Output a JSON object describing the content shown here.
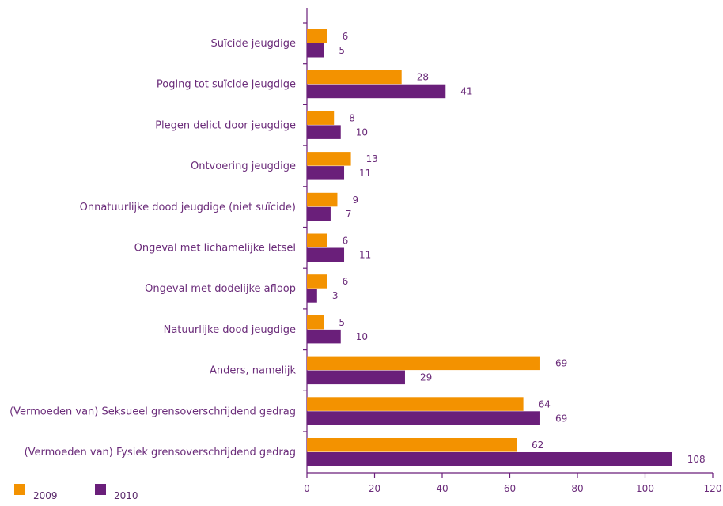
{
  "chart_data": {
    "type": "bar",
    "orientation": "horizontal",
    "categories": [
      "Suïcide jeugdige",
      "Poging tot suïcide jeugdige",
      "Plegen delict door jeugdige",
      "Ontvoering jeugdige",
      "Onnatuurlijke dood jeugdige (niet suïcide)",
      "Ongeval met lichamelijke letsel",
      "Ongeval met dodelijke afloop",
      "Natuurlijke dood jeugdige",
      "Anders, namelijk",
      "(Vermoeden van) Seksueel grensoverschrijdend gedrag",
      "(Vermoeden van) Fysiek grensoverschrijdend gedrag"
    ],
    "series": [
      {
        "name": "2009",
        "color": "#f39200",
        "values": [
          6,
          28,
          8,
          13,
          9,
          6,
          6,
          5,
          69,
          64,
          62
        ]
      },
      {
        "name": "2010",
        "color": "#6a1f7a",
        "values": [
          5,
          41,
          10,
          11,
          7,
          11,
          3,
          10,
          29,
          69,
          108
        ]
      }
    ],
    "xlim": [
      0,
      120
    ],
    "xticks": [
      "0",
      "20",
      "40",
      "60",
      "80",
      "100",
      "120"
    ],
    "title": "",
    "xlabel": "",
    "ylabel": "",
    "grid": false,
    "legend_position": "bottom-left",
    "colors": {
      "axis": "#6a1f7a",
      "text": "#6b2c7a"
    }
  }
}
